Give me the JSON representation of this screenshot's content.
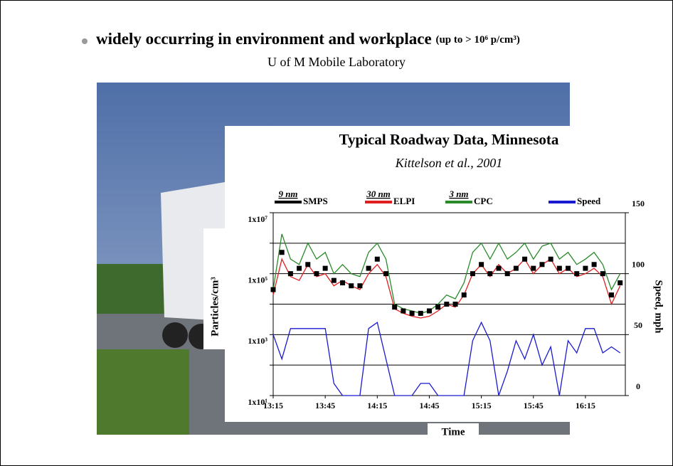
{
  "slide": {
    "bullet": "widely occurring in environment and workplace",
    "bullet_note": "(up to > 10⁶ p/cm³)",
    "caption": "U of M Mobile Laboratory"
  },
  "chart_data": {
    "type": "line",
    "title": "Typical Roadway Data, Minnesota",
    "subtitle": "Kittelson et al., 2001",
    "y_label": "Particles/cm³",
    "y2_label": "Speed, mph",
    "x_label": "Time",
    "log_y": true,
    "grid": true,
    "xlim": [
      795,
      998
    ],
    "xticks": [
      {
        "value": 795,
        "label": "13:15"
      },
      {
        "value": 825,
        "label": "13:45"
      },
      {
        "value": 855,
        "label": "14:15"
      },
      {
        "value": 885,
        "label": "14:45"
      },
      {
        "value": 915,
        "label": "15:15"
      },
      {
        "value": 945,
        "label": "15:45"
      },
      {
        "value": 975,
        "label": "16:15"
      }
    ],
    "ylim": [
      10,
      10000000
    ],
    "yticks": [
      {
        "value": 10,
        "label": "1x10¹"
      },
      {
        "value": 100,
        "label": null
      },
      {
        "value": 1000,
        "label": "1x10³"
      },
      {
        "value": 10000,
        "label": null
      },
      {
        "value": 100000,
        "label": "1x10⁵"
      },
      {
        "value": 1000000,
        "label": null
      },
      {
        "value": 10000000,
        "label": "1x10⁷"
      }
    ],
    "y2lim": [
      0,
      150
    ],
    "y2ticks": [
      0,
      50,
      100,
      150
    ],
    "x": [
      795,
      800,
      805,
      810,
      815,
      820,
      825,
      830,
      835,
      840,
      845,
      850,
      855,
      860,
      865,
      870,
      875,
      880,
      885,
      890,
      895,
      900,
      905,
      910,
      915,
      920,
      925,
      930,
      935,
      940,
      945,
      950,
      955,
      960,
      965,
      970,
      975,
      980,
      985,
      990,
      995
    ],
    "series": [
      {
        "name": "ELPI",
        "size_label": "30 nm",
        "color": "#e02020",
        "style": "line",
        "values": [
          20000,
          300000,
          80000,
          60000,
          200000,
          80000,
          100000,
          40000,
          60000,
          40000,
          30000,
          100000,
          200000,
          80000,
          7000,
          5000,
          4000,
          3500,
          4000,
          6000,
          10000,
          8000,
          20000,
          100000,
          200000,
          80000,
          200000,
          100000,
          150000,
          300000,
          100000,
          200000,
          300000,
          100000,
          150000,
          80000,
          100000,
          150000,
          80000,
          10000,
          40000
        ]
      },
      {
        "name": "CPC",
        "size_label": "3 nm",
        "color": "#2a8a2a",
        "style": "line",
        "values": [
          30000,
          2000000,
          300000,
          200000,
          1000000,
          300000,
          500000,
          100000,
          200000,
          100000,
          80000,
          500000,
          1000000,
          300000,
          10000,
          7000,
          6000,
          5000,
          6000,
          10000,
          20000,
          15000,
          50000,
          500000,
          1000000,
          300000,
          1000000,
          300000,
          500000,
          1000000,
          300000,
          800000,
          1000000,
          300000,
          500000,
          200000,
          300000,
          500000,
          200000,
          30000,
          100000
        ]
      },
      {
        "name": "SMPS",
        "size_label": "9 nm",
        "color": "#000000",
        "style": "markers",
        "values": [
          30000,
          500000,
          100000,
          150000,
          200000,
          100000,
          150000,
          60000,
          50000,
          40000,
          40000,
          150000,
          300000,
          100000,
          8000,
          6000,
          5000,
          5000,
          6000,
          8000,
          10000,
          10000,
          20000,
          100000,
          200000,
          100000,
          150000,
          100000,
          150000,
          300000,
          150000,
          200000,
          300000,
          150000,
          150000,
          100000,
          150000,
          200000,
          100000,
          20000,
          50000
        ]
      },
      {
        "name": "Speed",
        "color": "#1a1ad0",
        "style": "line",
        "axis": "y2",
        "values": [
          50,
          30,
          55,
          55,
          55,
          55,
          55,
          10,
          0,
          0,
          0,
          55,
          60,
          30,
          0,
          0,
          0,
          10,
          10,
          0,
          0,
          0,
          0,
          45,
          60,
          45,
          0,
          20,
          45,
          30,
          50,
          25,
          40,
          0,
          45,
          35,
          55,
          55,
          35,
          40,
          35
        ]
      }
    ]
  }
}
